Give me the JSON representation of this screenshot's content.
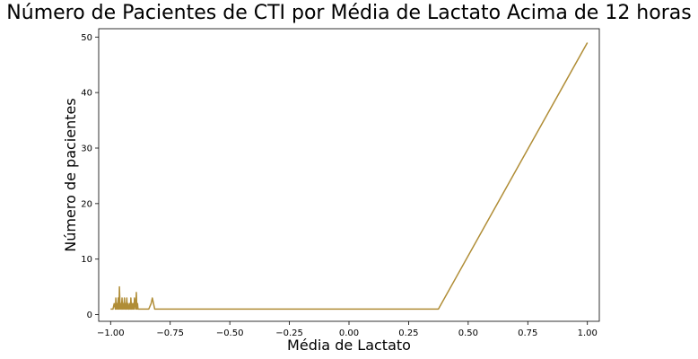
{
  "chart_data": {
    "type": "line",
    "title": "Número de Pacientes de CTI por Média de Lactato Acima de 12 horas",
    "xlabel": "Média de Lactato",
    "ylabel": "Número de pacientes",
    "xlim": [
      -1.05,
      1.05
    ],
    "ylim": [
      -1.2,
      51.5
    ],
    "xticks": [
      -1.0,
      -0.75,
      -0.5,
      -0.25,
      0.0,
      0.25,
      0.5,
      0.75,
      1.0
    ],
    "xtick_labels": [
      "−1.00",
      "−0.75",
      "−0.50",
      "−0.25",
      "0.00",
      "0.25",
      "0.50",
      "0.75",
      "1.00"
    ],
    "yticks": [
      0,
      10,
      20,
      30,
      40,
      50
    ],
    "ytick_labels": [
      "0",
      "10",
      "20",
      "30",
      "40",
      "50"
    ],
    "grid": false,
    "color": "#B08D36",
    "series": [
      {
        "x": [
          -1.0,
          -0.99,
          -0.985,
          -0.98,
          -0.978,
          -0.975,
          -0.973,
          -0.97,
          -0.968,
          -0.965,
          -0.963,
          -0.96,
          -0.957,
          -0.955,
          -0.952,
          -0.95,
          -0.947,
          -0.945,
          -0.942,
          -0.94,
          -0.937,
          -0.935,
          -0.932,
          -0.93,
          -0.927,
          -0.925,
          -0.922,
          -0.92,
          -0.917,
          -0.915,
          -0.912,
          -0.91,
          -0.907,
          -0.905,
          -0.902,
          -0.9,
          -0.897,
          -0.895,
          -0.892,
          -0.89,
          -0.887,
          -0.885,
          -0.88,
          -0.86,
          -0.84,
          -0.83,
          -0.825,
          -0.82,
          -0.815,
          -0.8,
          0.375,
          1.0
        ],
        "y": [
          1,
          1,
          2,
          1,
          3,
          1,
          2,
          1,
          3,
          1,
          5,
          1,
          2,
          1,
          3,
          1,
          2,
          1,
          3,
          1,
          2,
          1,
          3,
          1,
          2,
          1,
          1,
          2,
          1,
          3,
          1,
          2,
          1,
          2,
          1,
          3,
          2,
          1,
          4,
          1,
          2,
          1,
          1,
          1,
          1,
          2,
          3,
          2,
          1,
          1,
          1,
          49
        ]
      }
    ]
  }
}
